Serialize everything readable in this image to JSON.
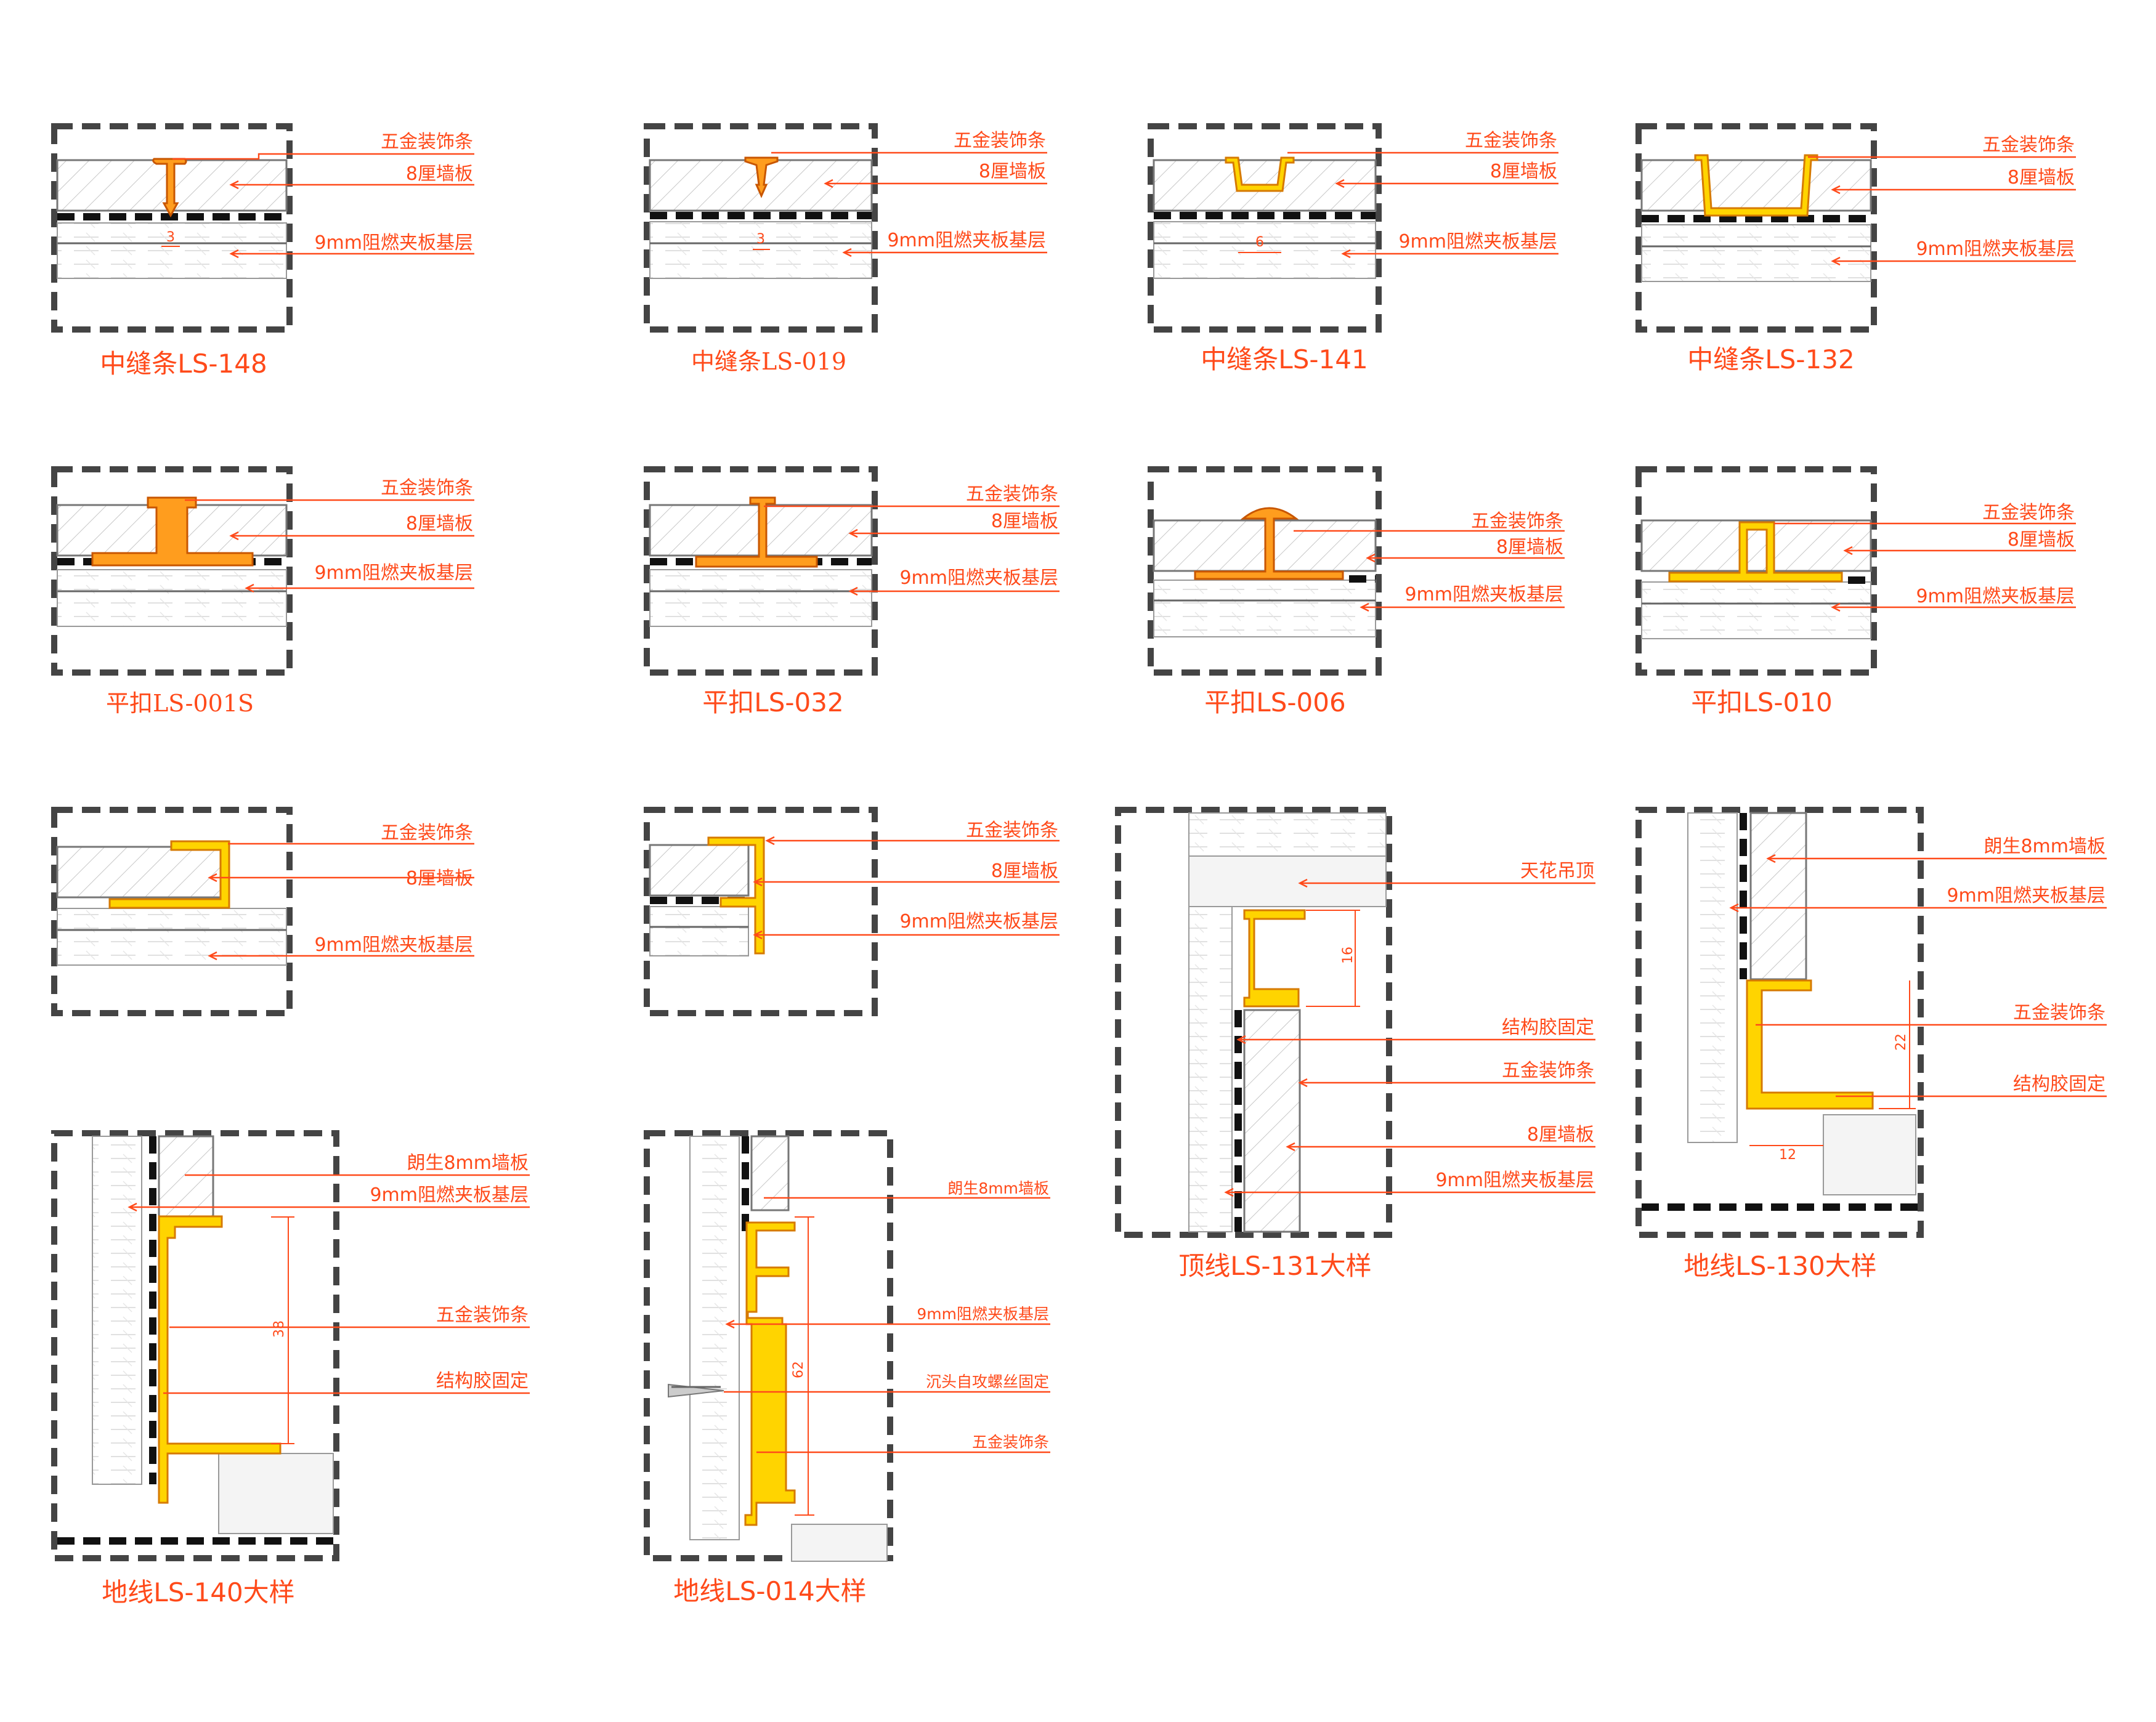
{
  "details": [
    {
      "id": "ls148",
      "title": "中缝条LS-148",
      "labels": [
        "五金装饰条",
        "8厘墙板",
        "9mm阻燃夹板基层"
      ],
      "dimension": "3"
    },
    {
      "id": "ls019",
      "title": "中缝条LS-019",
      "labels": [
        "五金装饰条",
        "8厘墙板",
        "9mm阻燃夹板基层"
      ],
      "dimension": "3"
    },
    {
      "id": "ls141",
      "title": "中缝条LS-141",
      "labels": [
        "五金装饰条",
        "8厘墙板",
        "9mm阻燃夹板基层"
      ],
      "dimension": "6"
    },
    {
      "id": "ls132",
      "title": "中缝条LS-132",
      "labels": [
        "五金装饰条",
        "8厘墙板",
        "9mm阻燃夹板基层"
      ]
    },
    {
      "id": "ls001s",
      "title": "平扣LS-001S",
      "labels": [
        "五金装饰条",
        "8厘墙板",
        "9mm阻燃夹板基层"
      ]
    },
    {
      "id": "ls032",
      "title": "平扣LS-032",
      "labels": [
        "五金装饰条",
        "8厘墙板",
        "9mm阻燃夹板基层"
      ]
    },
    {
      "id": "ls006",
      "title": "平扣LS-006",
      "labels": [
        "五金装饰条",
        "8厘墙板",
        "9mm阻燃夹板基层"
      ]
    },
    {
      "id": "ls010",
      "title": "平扣LS-010",
      "labels": [
        "五金装饰条",
        "8厘墙板",
        "9mm阻燃夹板基层"
      ]
    },
    {
      "id": "edge1",
      "title": "",
      "labels": [
        "五金装饰条",
        "8厘墙板",
        "9mm阻燃夹板基层"
      ]
    },
    {
      "id": "edge2",
      "title": "",
      "labels": [
        "五金装饰条",
        "8厘墙板",
        "9mm阻燃夹板基层"
      ]
    },
    {
      "id": "ls131",
      "title": "顶线LS-131大样",
      "labels": [
        "天花吊顶",
        "结构胶固定",
        "五金装饰条",
        "8厘墙板",
        "9mm阻燃夹板基层"
      ],
      "dimension": "16"
    },
    {
      "id": "ls130",
      "title": "地线LS-130大样",
      "labels": [
        "朗生8mm墙板",
        "9mm阻燃夹板基层",
        "五金装饰条",
        "结构胶固定"
      ],
      "dimension": "22",
      "dimension2": "12"
    },
    {
      "id": "ls140",
      "title": "地线LS-140大样",
      "labels": [
        "朗生8mm墙板",
        "9mm阻燃夹板基层",
        "五金装饰条",
        "结构胶固定"
      ],
      "dimension": "38"
    },
    {
      "id": "ls014",
      "title": "地线LS-014大样",
      "labels": [
        "朗生8mm墙板",
        "9mm阻燃夹板基层",
        "沉头自攻螺丝固定",
        "五金装饰条"
      ],
      "dimension": "62"
    }
  ],
  "colors": {
    "annotation": "#ff4a1a",
    "trim_yellow": "#ffd400",
    "trim_orange": "#ff9d1e",
    "frame": "#444444"
  }
}
